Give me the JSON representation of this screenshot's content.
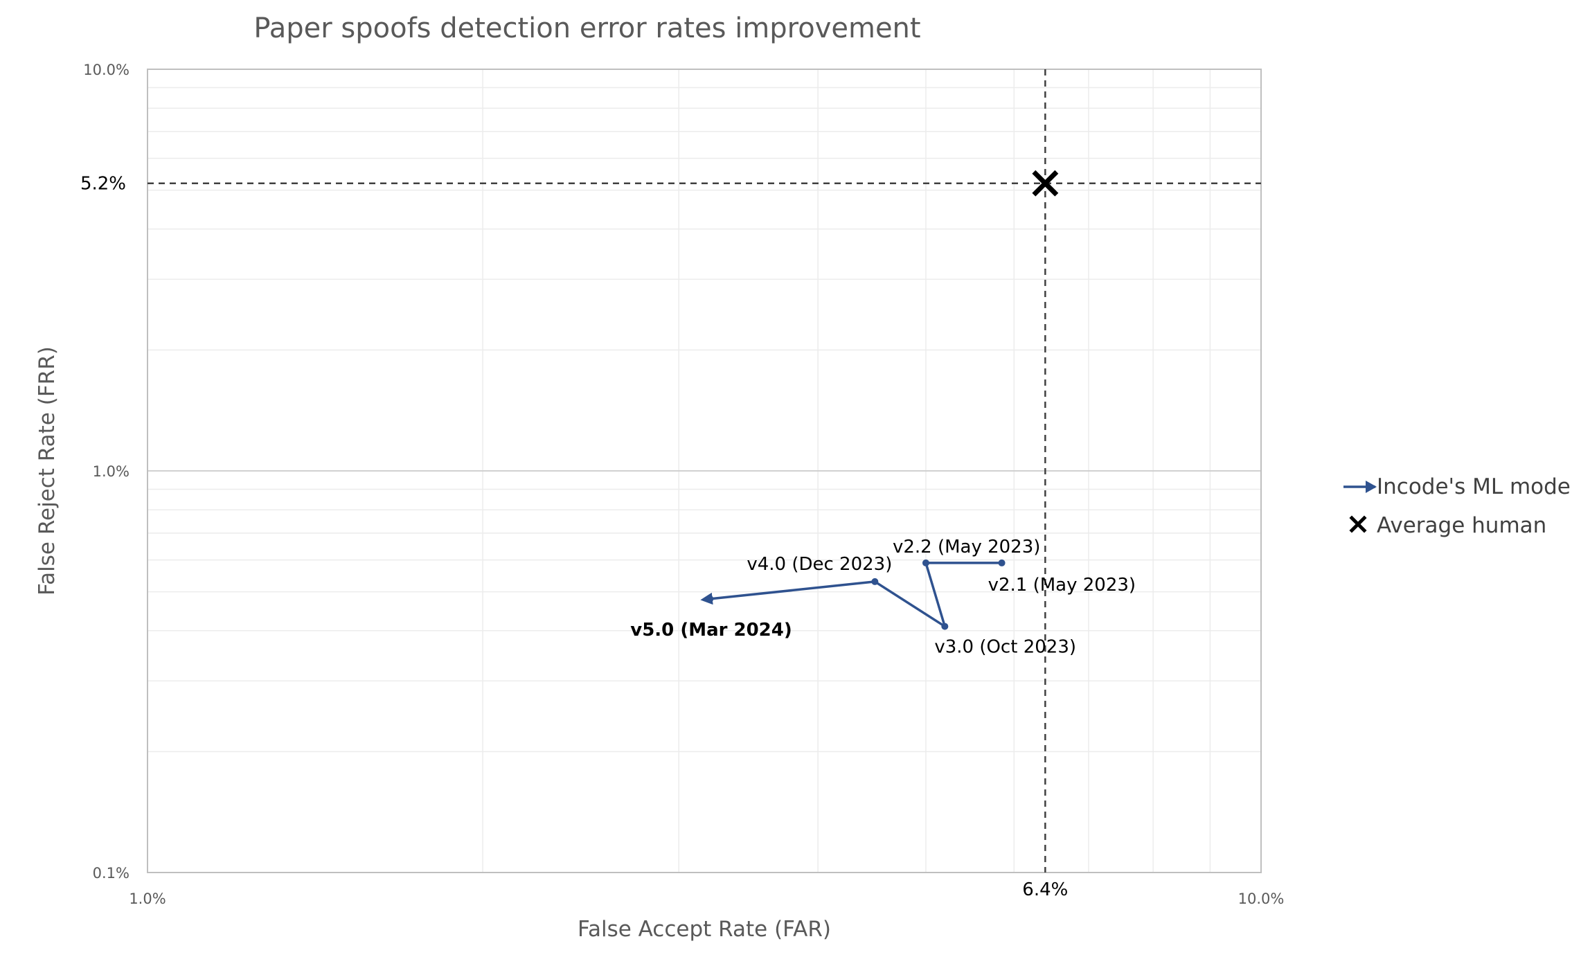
{
  "chart_data": {
    "type": "scatter",
    "title": "Paper spoofs detection error rates improvement",
    "xlabel": "False Accept Rate (FAR)",
    "ylabel": "False Reject Rate (FRR)",
    "xscale": "log",
    "yscale": "log",
    "xlim": [
      0.01,
      0.1
    ],
    "ylim": [
      0.001,
      0.1
    ],
    "x_tick_labels": [
      "1.0%",
      "10.0%"
    ],
    "y_tick_labels": [
      "10.0%",
      "1.0%",
      "0.1%"
    ],
    "grid": true,
    "legend_position": "right",
    "colors": {
      "model": "#2F528F",
      "human": "#000000",
      "grid": "#d9d9d9",
      "axis": "#bfbfbf"
    },
    "series": [
      {
        "name": "Incode's ML model",
        "marker": "circle-with-arrow",
        "points": [
          {
            "label": "v2.1 (May 2023)",
            "x": 0.0585,
            "y": 0.0059
          },
          {
            "label": "v2.2 (May 2023)",
            "x": 0.05,
            "y": 0.0059
          },
          {
            "label": "v3.0 (Oct 2023)",
            "x": 0.052,
            "y": 0.0041
          },
          {
            "label": "v4.0 (Dec 2023)",
            "x": 0.045,
            "y": 0.0053
          },
          {
            "label": "v5.0 (Mar 2024)",
            "x": 0.032,
            "y": 0.0048
          }
        ]
      },
      {
        "name": "Average human",
        "marker": "x",
        "points": [
          {
            "label": "",
            "x": 0.064,
            "y": 0.052
          }
        ]
      }
    ],
    "reference_lines": [
      {
        "axis": "x",
        "value": 0.064,
        "label": "6.4%"
      },
      {
        "axis": "y",
        "value": 0.052,
        "label": "5.2%"
      }
    ]
  }
}
